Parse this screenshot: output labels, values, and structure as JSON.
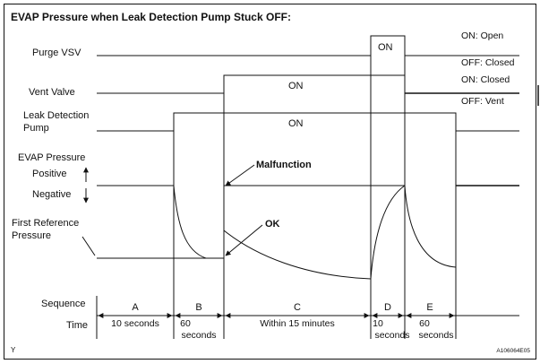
{
  "title": "EVAP Pressure when Leak Detection Pump Stuck OFF:",
  "signals": {
    "purge_vsv": "Purge VSV",
    "vent_valve": "Vent Valve",
    "leak_pump_line1": "Leak Detection",
    "leak_pump_line2": "Pump",
    "evap_pressure": "EVAP Pressure",
    "positive": "Positive",
    "negative": "Negative",
    "first_ref_line1": "First Reference",
    "first_ref_line2": "Pressure"
  },
  "states": {
    "purge_open": "ON: Open",
    "purge_closed": "OFF: Closed",
    "vent_closed": "ON: Closed",
    "vent_vent": "OFF: Vent"
  },
  "pulse_labels": {
    "purge_on": "ON",
    "vent_on": "ON",
    "pump_on": "ON"
  },
  "annotations": {
    "malfunction": "Malfunction",
    "ok": "OK"
  },
  "sequence": {
    "label": "Sequence",
    "phases": [
      "A",
      "B",
      "C",
      "D",
      "E"
    ]
  },
  "time": {
    "label": "Time",
    "a": "10 seconds",
    "b_line1": "60",
    "b_line2": "seconds",
    "c": "Within 15 minutes",
    "d_line1": "10",
    "d_line2": "seconds",
    "e_line1": "60",
    "e_line2": "seconds"
  },
  "footer": {
    "corner_mark": "Y",
    "figure_code": "A106064E05"
  }
}
